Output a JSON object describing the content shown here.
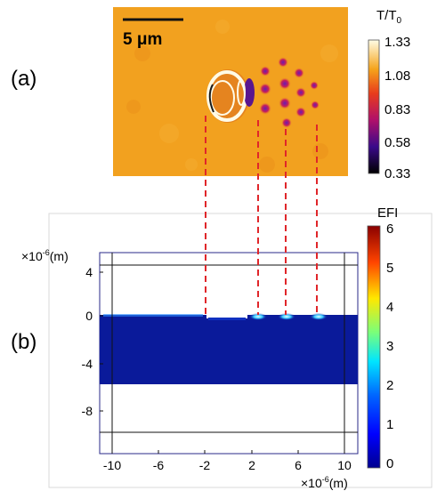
{
  "panel_a": {
    "label": "(a)",
    "scale_bar_text": "5 μm",
    "colorbar_title": "T/T",
    "colorbar_title_sub": "0",
    "colorbar_ticks": [
      "1.33",
      "1.08",
      "0.83",
      "0.58",
      "0.33"
    ]
  },
  "panel_b": {
    "label": "(b)",
    "colorbar_title": "EFI",
    "colorbar_ticks": [
      "6",
      "5",
      "4",
      "3",
      "2",
      "1",
      "0"
    ],
    "y_multiplier": "×10",
    "y_multiplier_exp": "-6",
    "y_unit": "(m)",
    "x_multiplier": "×10",
    "x_multiplier_exp": "-6",
    "x_unit": "(m)",
    "y_ticks": [
      "4",
      "0",
      "-4",
      "-8"
    ],
    "x_ticks": [
      "-10",
      "-6",
      "-2",
      "2",
      "6",
      "10"
    ]
  },
  "colors": {
    "map_orange": "#f2a11f",
    "field_blue": "#0a1a9a",
    "guide_red": "#e0262a"
  }
}
